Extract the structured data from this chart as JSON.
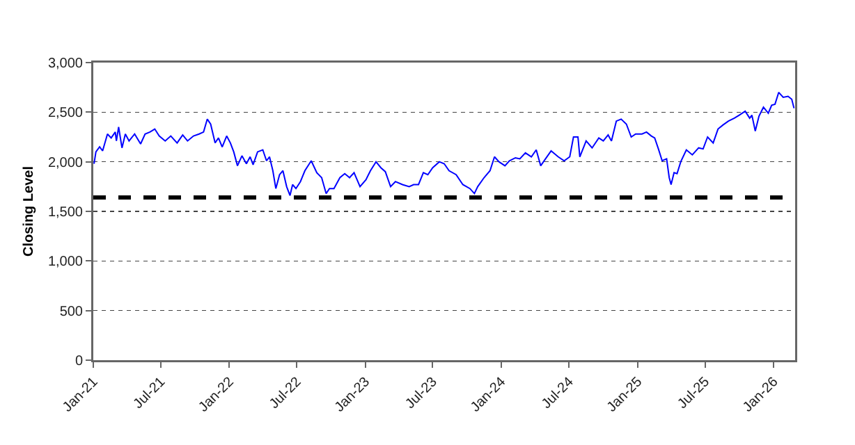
{
  "chart_data": {
    "type": "line",
    "ylabel": "Closing Level",
    "grid": "y",
    "marker": "none",
    "line_style": "solid",
    "xlim": [
      "2021-01-01",
      "2026-02-28"
    ],
    "xticks": [
      {
        "value": "2021-01-01",
        "label": "Jan-21"
      },
      {
        "value": "2021-07-01",
        "label": "Jul-21"
      },
      {
        "value": "2022-01-01",
        "label": "Jan-22"
      },
      {
        "value": "2022-07-01",
        "label": "Jul-22"
      },
      {
        "value": "2023-01-01",
        "label": "Jan-23"
      },
      {
        "value": "2023-07-01",
        "label": "Jul-23"
      },
      {
        "value": "2024-01-01",
        "label": "Jan-24"
      },
      {
        "value": "2024-07-01",
        "label": "Jul-24"
      },
      {
        "value": "2025-01-01",
        "label": "Jan-25"
      },
      {
        "value": "2025-07-01",
        "label": "Jul-25"
      },
      {
        "value": "2026-01-01",
        "label": "Jan-26"
      }
    ],
    "ylim": [
      0,
      3000
    ],
    "yticks": [
      {
        "value": 0,
        "label": "0"
      },
      {
        "value": 500,
        "label": "500"
      },
      {
        "value": 1000,
        "label": "1,000"
      },
      {
        "value": 1500,
        "label": "1,500"
      },
      {
        "value": 2000,
        "label": "2,000"
      },
      {
        "value": 2500,
        "label": "2,500"
      },
      {
        "value": 3000,
        "label": "3,000"
      }
    ],
    "ref_lines": [
      {
        "axis": "y",
        "value": 1640,
        "color": "#000000",
        "line_style": "dashed"
      }
    ],
    "series": [
      {
        "color": "#0000ff",
        "x": [
          "2021-01-03",
          "2021-01-08",
          "2021-01-18",
          "2021-01-26",
          "2021-02-08",
          "2021-02-18",
          "2021-03-01",
          "2021-03-04",
          "2021-03-10",
          "2021-03-19",
          "2021-03-28",
          "2021-04-07",
          "2021-04-22",
          "2021-05-08",
          "2021-05-20",
          "2021-06-02",
          "2021-06-15",
          "2021-06-27",
          "2021-07-13",
          "2021-07-28",
          "2021-08-14",
          "2021-08-29",
          "2021-09-11",
          "2021-09-27",
          "2021-10-12",
          "2021-10-24",
          "2021-11-03",
          "2021-11-12",
          "2021-11-24",
          "2021-12-03",
          "2021-12-13",
          "2021-12-25",
          "2022-01-04",
          "2022-01-13",
          "2022-01-23",
          "2022-02-04",
          "2022-02-16",
          "2022-02-26",
          "2022-03-06",
          "2022-03-18",
          "2022-04-01",
          "2022-04-11",
          "2022-04-19",
          "2022-04-28",
          "2022-05-06",
          "2022-05-16",
          "2022-05-25",
          "2022-06-04",
          "2022-06-13",
          "2022-06-20",
          "2022-06-29",
          "2022-07-11",
          "2022-07-23",
          "2022-08-09",
          "2022-08-24",
          "2022-09-06",
          "2022-09-18",
          "2022-09-27",
          "2022-10-09",
          "2022-10-25",
          "2022-11-07",
          "2022-11-20",
          "2022-12-02",
          "2022-12-18",
          "2023-01-03",
          "2023-01-15",
          "2023-01-30",
          "2023-02-12",
          "2023-02-24",
          "2023-03-10",
          "2023-03-23",
          "2023-04-11",
          "2023-04-29",
          "2023-05-11",
          "2023-05-24",
          "2023-06-06",
          "2023-06-18",
          "2023-07-01",
          "2023-07-19",
          "2023-08-01",
          "2023-08-14",
          "2023-09-02",
          "2023-09-20",
          "2023-10-09",
          "2023-10-21",
          "2023-10-30",
          "2023-11-16",
          "2023-12-02",
          "2023-12-14",
          "2023-12-26",
          "2024-01-11",
          "2024-01-23",
          "2024-02-08",
          "2024-02-20",
          "2024-03-06",
          "2024-03-22",
          "2024-04-04",
          "2024-04-16",
          "2024-04-29",
          "2024-05-14",
          "2024-06-02",
          "2024-06-18",
          "2024-07-03",
          "2024-07-13",
          "2024-07-25",
          "2024-07-30",
          "2024-08-16",
          "2024-09-01",
          "2024-09-19",
          "2024-10-01",
          "2024-10-14",
          "2024-10-23",
          "2024-11-05",
          "2024-11-18",
          "2024-12-02",
          "2024-12-15",
          "2024-12-27",
          "2025-01-13",
          "2025-01-25",
          "2025-02-07",
          "2025-02-16",
          "2025-02-26",
          "2025-03-08",
          "2025-03-20",
          "2025-03-27",
          "2025-04-01",
          "2025-04-09",
          "2025-04-17",
          "2025-04-27",
          "2025-05-12",
          "2025-05-28",
          "2025-06-14",
          "2025-06-26",
          "2025-07-08",
          "2025-07-23",
          "2025-08-05",
          "2025-08-18",
          "2025-09-02",
          "2025-09-18",
          "2025-10-01",
          "2025-10-17",
          "2025-10-29",
          "2025-11-04",
          "2025-11-13",
          "2025-11-23",
          "2025-12-05",
          "2025-12-18",
          "2025-12-27",
          "2026-01-05",
          "2026-01-15",
          "2026-01-27",
          "2026-02-09",
          "2026-02-19",
          "2026-02-25"
        ],
        "values": [
          1980,
          2100,
          2150,
          2110,
          2280,
          2240,
          2300,
          2210,
          2350,
          2140,
          2280,
          2210,
          2280,
          2180,
          2280,
          2300,
          2330,
          2260,
          2210,
          2260,
          2190,
          2270,
          2210,
          2260,
          2280,
          2300,
          2430,
          2380,
          2190,
          2240,
          2150,
          2260,
          2190,
          2100,
          1960,
          2060,
          1980,
          2050,
          1970,
          2100,
          2120,
          2010,
          2050,
          1910,
          1730,
          1870,
          1910,
          1750,
          1660,
          1770,
          1730,
          1800,
          1910,
          2010,
          1890,
          1840,
          1680,
          1730,
          1730,
          1840,
          1880,
          1840,
          1890,
          1750,
          1820,
          1910,
          2000,
          1940,
          1900,
          1750,
          1800,
          1770,
          1750,
          1770,
          1770,
          1890,
          1870,
          1940,
          2000,
          1980,
          1910,
          1870,
          1770,
          1730,
          1680,
          1750,
          1840,
          1910,
          2050,
          2000,
          1960,
          2010,
          2040,
          2030,
          2090,
          2050,
          2120,
          1960,
          2030,
          2110,
          2050,
          2010,
          2050,
          2250,
          2250,
          2050,
          2210,
          2140,
          2240,
          2210,
          2270,
          2210,
          2410,
          2430,
          2380,
          2250,
          2280,
          2280,
          2300,
          2260,
          2240,
          2130,
          2010,
          2030,
          1840,
          1770,
          1890,
          1880,
          2000,
          2120,
          2070,
          2140,
          2130,
          2250,
          2190,
          2330,
          2370,
          2410,
          2440,
          2470,
          2510,
          2440,
          2470,
          2310,
          2460,
          2550,
          2490,
          2570,
          2580,
          2700,
          2650,
          2660,
          2630,
          2540
        ]
      }
    ]
  }
}
